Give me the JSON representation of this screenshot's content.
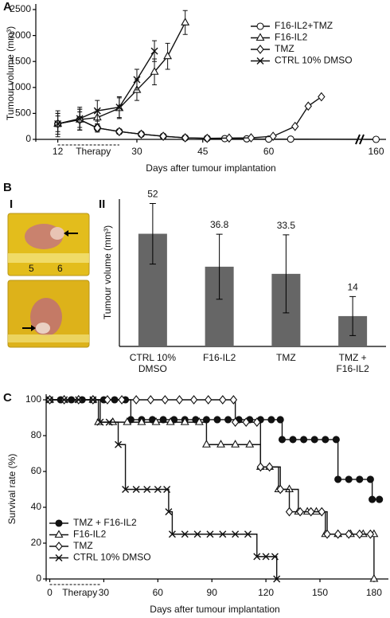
{
  "chart_data": [
    {
      "type": "line",
      "panel_label": "A",
      "x_label": "Days after tumour implantation",
      "y_label": "Tumour volume (mm³)",
      "annotation": "Therapy",
      "therapy_period": [
        12,
        26
      ],
      "xlim": [
        7,
        163
      ],
      "axis_break": [
        80,
        157
      ],
      "xticks": [
        12,
        30,
        45,
        60,
        160
      ],
      "ylim": [
        0,
        2500
      ],
      "yticks": [
        0,
        500,
        1000,
        1500,
        2000,
        2500
      ],
      "legend": "upper right",
      "series": [
        {
          "name": "F16-IL2+TMZ",
          "marker": "circle-open",
          "color": "#111111",
          "x": [
            12,
            17,
            21,
            26,
            31,
            36,
            41,
            46,
            50,
            55,
            60,
            65,
            160
          ],
          "values": [
            300,
            380,
            220,
            150,
            100,
            60,
            30,
            20,
            15,
            10,
            5,
            5,
            0
          ],
          "errors": [
            250,
            200,
            80,
            50,
            null,
            null,
            null,
            null,
            null,
            null,
            null,
            null,
            null
          ]
        },
        {
          "name": "F16-IL2",
          "marker": "triangle-open",
          "color": "#111111",
          "x": [
            12,
            17,
            21,
            26,
            30,
            34,
            37,
            41
          ],
          "values": [
            300,
            380,
            420,
            600,
            950,
            1300,
            1600,
            2250
          ],
          "errors": [
            200,
            200,
            150,
            200,
            200,
            250,
            250,
            230
          ]
        },
        {
          "name": "TMZ",
          "marker": "diamond-open",
          "color": "#111111",
          "x": [
            12,
            17,
            21,
            26,
            31,
            36,
            41,
            46,
            51,
            56,
            61,
            66,
            69,
            72
          ],
          "values": [
            300,
            380,
            220,
            150,
            100,
            60,
            30,
            20,
            25,
            30,
            60,
            250,
            640,
            820
          ],
          "errors": [
            150,
            150,
            60,
            40,
            null,
            null,
            null,
            null,
            null,
            null,
            null,
            null,
            null,
            null
          ]
        },
        {
          "name": "CTRL 10% DMSO",
          "marker": "x",
          "color": "#111111",
          "x": [
            12,
            17,
            21,
            26,
            30,
            34
          ],
          "values": [
            300,
            400,
            550,
            620,
            1150,
            1700
          ],
          "errors": [
            200,
            220,
            200,
            200,
            200,
            200
          ]
        }
      ]
    },
    {
      "type": "bar",
      "panel_label": "B",
      "subpanel_labels": [
        "I",
        "II"
      ],
      "y_label": "Tumour volume (mm³)",
      "categories": [
        [
          "CTRL 10%",
          "DMSO"
        ],
        [
          "F16-IL2"
        ],
        [
          "TMZ"
        ],
        [
          "TMZ +",
          "F16-IL2"
        ]
      ],
      "values": [
        52,
        36.8,
        33.5,
        14
      ],
      "errors": [
        14,
        15,
        18,
        9
      ],
      "ylim": [
        0,
        68
      ],
      "color": "#666666"
    },
    {
      "type": "line",
      "step": true,
      "panel_label": "C",
      "x_label": "Days after tumour implantation",
      "y_label": "Survival rate (%)",
      "annotation": "Therapy",
      "therapy_period": [
        0,
        28
      ],
      "xlim": [
        -2,
        188
      ],
      "xticks": [
        0,
        30,
        60,
        90,
        120,
        150,
        180
      ],
      "ylim": [
        0,
        100
      ],
      "yticks": [
        0,
        20,
        40,
        60,
        80,
        100
      ],
      "legend": "lower left",
      "series": [
        {
          "name": "TMZ + F16-IL2",
          "marker": "circle-filled",
          "color": "#111111",
          "x": [
            0,
            6,
            12,
            18,
            24,
            30,
            36,
            42,
            45,
            51,
            57,
            63,
            69,
            75,
            81,
            87,
            93,
            99,
            105,
            111,
            117,
            123,
            128,
            129,
            135,
            141,
            147,
            153,
            159,
            160,
            166,
            172,
            178,
            179,
            183
          ],
          "values": [
            100,
            100,
            100,
            100,
            100,
            100,
            100,
            100,
            88.9,
            88.9,
            88.9,
            88.9,
            88.9,
            88.9,
            88.9,
            88.9,
            88.9,
            88.9,
            88.9,
            88.9,
            88.9,
            88.9,
            88.9,
            77.8,
            77.8,
            77.8,
            77.8,
            77.8,
            77.8,
            55.6,
            55.6,
            55.6,
            55.6,
            44.4,
            44.4
          ]
        },
        {
          "name": "F16-IL2",
          "marker": "triangle-open",
          "color": "#111111",
          "x": [
            0,
            8,
            16,
            24,
            27,
            35,
            43,
            51,
            59,
            67,
            75,
            83,
            87,
            95,
            103,
            111,
            117,
            122,
            127,
            133,
            138,
            143,
            148,
            153,
            160,
            167,
            174,
            180,
            180
          ],
          "values": [
            100,
            100,
            100,
            100,
            87.5,
            87.5,
            87.5,
            87.5,
            87.5,
            87.5,
            87.5,
            87.5,
            75,
            75,
            75,
            75,
            62.5,
            62.5,
            50,
            50,
            37.5,
            37.5,
            37.5,
            25,
            25,
            25,
            25,
            25,
            0
          ]
        },
        {
          "name": "TMZ",
          "marker": "diamond-open",
          "color": "#111111",
          "x": [
            0,
            8,
            16,
            24,
            32,
            40,
            48,
            56,
            64,
            72,
            80,
            88,
            96,
            102,
            103,
            109,
            115,
            117,
            122,
            128,
            133,
            139,
            145,
            151,
            154,
            160,
            166,
            172,
            178
          ],
          "values": [
            100,
            100,
            100,
            100,
            100,
            100,
            100,
            100,
            100,
            100,
            100,
            100,
            100,
            100,
            87.5,
            87.5,
            87.5,
            62.5,
            62.5,
            50,
            37.5,
            37.5,
            37.5,
            37.5,
            25,
            25,
            25,
            25,
            25
          ]
        },
        {
          "name": "CTRL 10% DMSO",
          "marker": "x",
          "color": "#111111",
          "x": [
            0,
            8,
            16,
            24,
            28,
            33,
            38,
            42,
            48,
            54,
            60,
            65,
            66,
            68,
            75,
            82,
            89,
            96,
            103,
            110,
            115,
            120,
            125,
            126
          ],
          "values": [
            100,
            100,
            100,
            100,
            87.5,
            87.5,
            75,
            50,
            50,
            50,
            50,
            50,
            37.5,
            25,
            25,
            25,
            25,
            25,
            25,
            25,
            12.5,
            12.5,
            12.5,
            0
          ]
        }
      ]
    }
  ]
}
